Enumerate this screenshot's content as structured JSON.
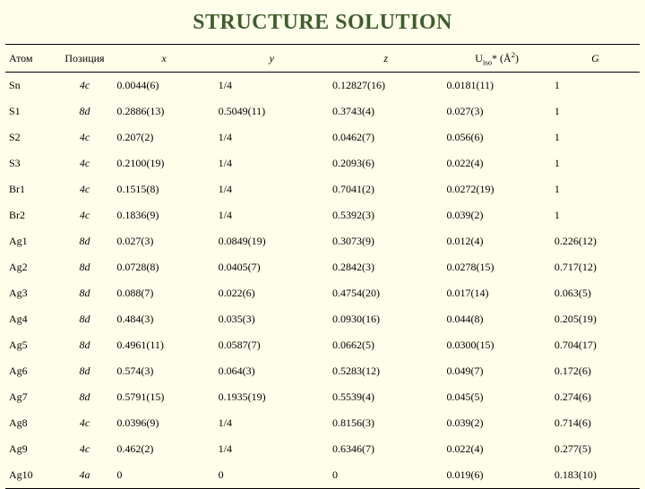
{
  "title": "STRUCTURE SOLUTION",
  "headers": {
    "atom": "Атом",
    "position": "Позиция",
    "x": "x",
    "y": "y",
    "z": "z",
    "u_prefix": "U",
    "u_sub": "iso",
    "u_star": "*",
    "u_unit_open": " (Å",
    "u_unit_sup": "2",
    "u_unit_close": ")",
    "g": "G"
  },
  "rows": [
    {
      "atom": "Sn",
      "pos": "4c",
      "x": "0.0044(6)",
      "y": "1/4",
      "z": "0.12827(16)",
      "u": "0.0181(11)",
      "g": "1"
    },
    {
      "atom": "S1",
      "pos": "8d",
      "x": "0.2886(13)",
      "y": "0.5049(11)",
      "z": "0.3743(4)",
      "u": "0.027(3)",
      "g": "1"
    },
    {
      "atom": "S2",
      "pos": "4c",
      "x": "0.207(2)",
      "y": "1/4",
      "z": "0.0462(7)",
      "u": "0.056(6)",
      "g": "1"
    },
    {
      "atom": "S3",
      "pos": "4c",
      "x": "0.2100(19)",
      "y": "1/4",
      "z": "0.2093(6)",
      "u": "0.022(4)",
      "g": "1"
    },
    {
      "atom": "Br1",
      "pos": "4c",
      "x": "0.1515(8)",
      "y": "1/4",
      "z": "0.7041(2)",
      "u": "0.0272(19)",
      "g": "1"
    },
    {
      "atom": "Br2",
      "pos": "4c",
      "x": "0.1836(9)",
      "y": "1/4",
      "z": "0.5392(3)",
      "u": "0.039(2)",
      "g": "1"
    },
    {
      "atom": "Ag1",
      "pos": "8d",
      "x": "0.027(3)",
      "y": "0.0849(19)",
      "z": "0.3073(9)",
      "u": "0.012(4)",
      "g": "0.226(12)"
    },
    {
      "atom": "Ag2",
      "pos": "8d",
      "x": "0.0728(8)",
      "y": "0.0405(7)",
      "z": "0.2842(3)",
      "u": "0.0278(15)",
      "g": "0.717(12)"
    },
    {
      "atom": "Ag3",
      "pos": "8d",
      "x": "0.088(7)",
      "y": "0.022(6)",
      "z": "0.4754(20)",
      "u": "0.017(14)",
      "g": "0.063(5)"
    },
    {
      "atom": "Ag4",
      "pos": "8d",
      "x": "0.484(3)",
      "y": "0.035(3)",
      "z": "0.0930(16)",
      "u": "0.044(8)",
      "g": "0.205(19)"
    },
    {
      "atom": "Ag5",
      "pos": "8d",
      "x": "0.4961(11)",
      "y": "0.0587(7)",
      "z": "0.0662(5)",
      "u": "0.0300(15)",
      "g": "0.704(17)"
    },
    {
      "atom": "Ag6",
      "pos": "8d",
      "x": "0.574(3)",
      "y": "0.064(3)",
      "z": "0.5283(12)",
      "u": "0.049(7)",
      "g": "0.172(6)"
    },
    {
      "atom": "Ag7",
      "pos": "8d",
      "x": "0.5791(15)",
      "y": "0.1935(19)",
      "z": "0.5539(4)",
      "u": "0.045(5)",
      "g": "0.274(6)"
    },
    {
      "atom": "Ag8",
      "pos": "4c",
      "x": "0.0396(9)",
      "y": "1/4",
      "z": "0.8156(3)",
      "u": "0.039(2)",
      "g": "0.714(6)"
    },
    {
      "atom": "Ag9",
      "pos": "4c",
      "x": "0.462(2)",
      "y": "1/4",
      "z": "0.6346(7)",
      "u": "0.022(4)",
      "g": "0.277(5)"
    },
    {
      "atom": "Ag10",
      "pos": "4a",
      "x": "0",
      "y": "0",
      "z": "0",
      "u": "0.019(6)",
      "g": "0.183(10)"
    }
  ]
}
